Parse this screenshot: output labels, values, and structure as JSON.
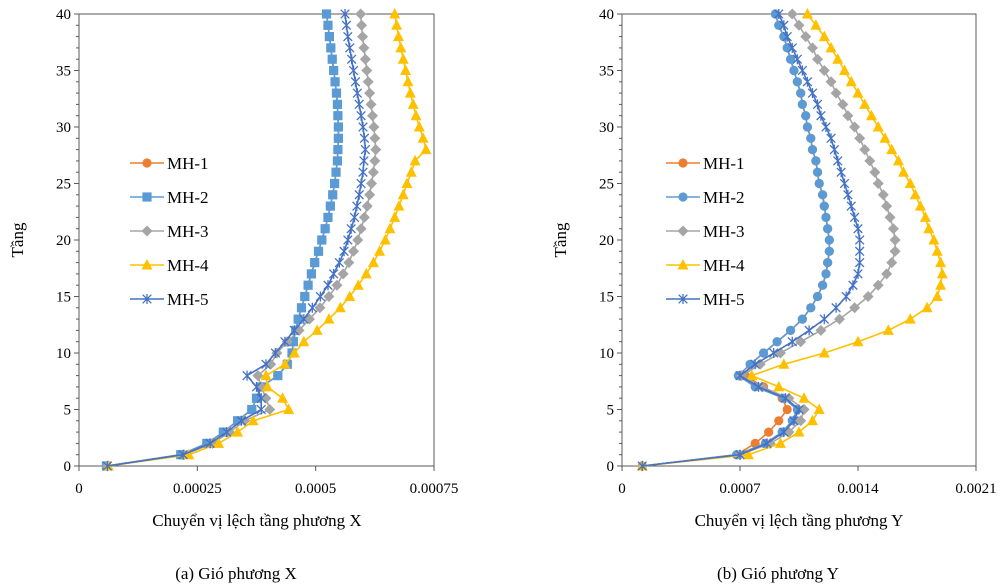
{
  "chart_data": [
    {
      "type": "line",
      "caption": "(a)  Gió phương X",
      "xlabel": "Chuyển vị lệch tầng phương X",
      "ylabel": "Tầng",
      "xlim": [
        0,
        0.00075
      ],
      "ylim": [
        0,
        40
      ],
      "xticks": [
        "0",
        "0.00025",
        "0.0005",
        "0.00075"
      ],
      "yticks": [
        "0",
        "5",
        "10",
        "15",
        "20",
        "25",
        "30",
        "35",
        "40"
      ],
      "legend_position": "left-middle",
      "grid": false,
      "series": [
        {
          "name": "MH-1",
          "color": "#ED7D31",
          "marker": "circle",
          "x": [
            5.8e-05,
            0.000215,
            0.00027,
            0.000305,
            0.000335,
            0.000365,
            0.000375,
            0.000385,
            0.00042,
            0.00044,
            0.00045,
            0.000453,
            0.000458,
            0.000463,
            0.00047,
            0.000477,
            0.000484,
            0.000491,
            0.000498,
            0.000506,
            0.000513,
            0.00052,
            0.000526,
            0.000531,
            0.000536,
            0.00054,
            0.000543,
            0.000546,
            0.000547,
            0.000548,
            0.000548,
            0.000547,
            0.000546,
            0.000544,
            0.000541,
            0.000538,
            0.000535,
            0.000532,
            0.000529,
            0.000526,
            0.000523
          ],
          "y": [
            0,
            1,
            2,
            3,
            4,
            5,
            6,
            7,
            8,
            9,
            10,
            11,
            12,
            13,
            14,
            15,
            16,
            17,
            18,
            19,
            20,
            21,
            22,
            23,
            24,
            25,
            26,
            27,
            28,
            29,
            30,
            31,
            32,
            33,
            34,
            35,
            36,
            37,
            38,
            39,
            40
          ]
        },
        {
          "name": "MH-2",
          "color": "#5B9BD5",
          "marker": "square",
          "x": [
            5.8e-05,
            0.000215,
            0.00027,
            0.000305,
            0.000335,
            0.000365,
            0.000375,
            0.000385,
            0.00042,
            0.00044,
            0.00045,
            0.000453,
            0.000458,
            0.000463,
            0.00047,
            0.000477,
            0.000484,
            0.000491,
            0.000498,
            0.000506,
            0.000513,
            0.00052,
            0.000526,
            0.000531,
            0.000536,
            0.00054,
            0.000543,
            0.000546,
            0.000547,
            0.000548,
            0.000548,
            0.000547,
            0.000546,
            0.000544,
            0.000541,
            0.000538,
            0.000535,
            0.000532,
            0.000529,
            0.000526,
            0.000523
          ],
          "y": [
            0,
            1,
            2,
            3,
            4,
            5,
            6,
            7,
            8,
            9,
            10,
            11,
            12,
            13,
            14,
            15,
            16,
            17,
            18,
            19,
            20,
            21,
            22,
            23,
            24,
            25,
            26,
            27,
            28,
            29,
            30,
            31,
            32,
            33,
            34,
            35,
            36,
            37,
            38,
            39,
            40
          ]
        },
        {
          "name": "MH-3",
          "color": "#A5A5A5",
          "marker": "diamond",
          "x": [
            6e-05,
            0.000222,
            0.000282,
            0.000318,
            0.00035,
            0.000403,
            0.000395,
            0.000385,
            0.000378,
            0.000405,
            0.000418,
            0.00044,
            0.000465,
            0.000487,
            0.000509,
            0.000528,
            0.000545,
            0.000558,
            0.00057,
            0.00058,
            0.000589,
            0.000596,
            0.000603,
            0.000609,
            0.000614,
            0.000618,
            0.000622,
            0.000625,
            0.000627,
            0.000625,
            0.000623,
            0.00062,
            0.000617,
            0.000614,
            0.000611,
            0.000608,
            0.000605,
            0.000602,
            0.000599,
            0.000597,
            0.000595
          ],
          "y": [
            0,
            1,
            2,
            3,
            4,
            5,
            6,
            7,
            8,
            9,
            10,
            11,
            12,
            13,
            14,
            15,
            16,
            17,
            18,
            19,
            20,
            21,
            22,
            23,
            24,
            25,
            26,
            27,
            28,
            29,
            30,
            31,
            32,
            33,
            34,
            35,
            36,
            37,
            38,
            39,
            40
          ]
        },
        {
          "name": "MH-4",
          "color": "#FFC000",
          "marker": "triangle",
          "x": [
            6.2e-05,
            0.000232,
            0.000295,
            0.000335,
            0.000368,
            0.000443,
            0.00043,
            0.000398,
            0.000395,
            0.000435,
            0.000455,
            0.000475,
            0.000503,
            0.000528,
            0.000552,
            0.000572,
            0.00059,
            0.000607,
            0.000622,
            0.000635,
            0.000647,
            0.000657,
            0.000667,
            0.000676,
            0.000685,
            0.000693,
            0.000702,
            0.00071,
            0.000733,
            0.000727,
            0.000719,
            0.000712,
            0.000706,
            0.0007,
            0.000695,
            0.00069,
            0.000685,
            0.00068,
            0.000675,
            0.000671,
            0.000667
          ],
          "y": [
            0,
            1,
            2,
            3,
            4,
            5,
            6,
            7,
            8,
            9,
            10,
            11,
            12,
            13,
            14,
            15,
            16,
            17,
            18,
            19,
            20,
            21,
            22,
            23,
            24,
            25,
            26,
            27,
            28,
            29,
            30,
            31,
            32,
            33,
            34,
            35,
            36,
            37,
            38,
            39,
            40
          ]
        },
        {
          "name": "MH-5",
          "color": "#4472C4",
          "marker": "star",
          "x": [
            6e-05,
            0.00022,
            0.000277,
            0.000312,
            0.000343,
            0.000385,
            0.000385,
            0.000375,
            0.000355,
            0.000395,
            0.000415,
            0.000435,
            0.000455,
            0.000475,
            0.000493,
            0.00051,
            0.000526,
            0.000538,
            0.00055,
            0.00056,
            0.000568,
            0.000575,
            0.000582,
            0.000587,
            0.000592,
            0.000596,
            0.0006,
            0.000602,
            0.000605,
            0.000603,
            0.0006,
            0.000596,
            0.000592,
            0.000588,
            0.000584,
            0.00058,
            0.000576,
            0.000572,
            0.000568,
            0.000565,
            0.000562
          ],
          "y": [
            0,
            1,
            2,
            3,
            4,
            5,
            6,
            7,
            8,
            9,
            10,
            11,
            12,
            13,
            14,
            15,
            16,
            17,
            18,
            19,
            20,
            21,
            22,
            23,
            24,
            25,
            26,
            27,
            28,
            29,
            30,
            31,
            32,
            33,
            34,
            35,
            36,
            37,
            38,
            39,
            40
          ]
        }
      ]
    },
    {
      "type": "line",
      "caption": "(b)  Gió phương Y",
      "xlabel": "Chuyển vị lệch tầng phương Y",
      "ylabel": "Tầng",
      "xlim": [
        0,
        0.0021
      ],
      "ylim": [
        0,
        40
      ],
      "xticks": [
        "0",
        "0.0007",
        "0.0014",
        "0.0021"
      ],
      "yticks": [
        "0",
        "5",
        "10",
        "15",
        "20",
        "25",
        "30",
        "35",
        "40"
      ],
      "legend_position": "left-middle",
      "grid": false,
      "series": [
        {
          "name": "MH-1",
          "color": "#ED7D31",
          "marker": "circle",
          "x": [
            0.00012,
            0.00068,
            0.00079,
            0.00087,
            0.00093,
            0.00098,
            0.00095,
            0.00084,
            0.00073,
            0.00076,
            0.00084,
            0.00092,
            0.001,
            0.00107,
            0.00112,
            0.00116,
            0.00119,
            0.00121,
            0.00122,
            0.00123,
            0.00123,
            0.00122,
            0.00121,
            0.0012,
            0.00119,
            0.00117,
            0.00116,
            0.00115,
            0.00113,
            0.00112,
            0.0011,
            0.00109,
            0.00107,
            0.00106,
            0.00104,
            0.00102,
            0.001,
            0.00098,
            0.00096,
            0.00093,
            0.00091
          ],
          "y": [
            0,
            1,
            2,
            3,
            4,
            5,
            6,
            7,
            8,
            9,
            10,
            11,
            12,
            13,
            14,
            15,
            16,
            17,
            18,
            19,
            20,
            21,
            22,
            23,
            24,
            25,
            26,
            27,
            28,
            29,
            30,
            31,
            32,
            33,
            34,
            35,
            36,
            37,
            38,
            39,
            40
          ]
        },
        {
          "name": "MH-2",
          "color": "#5B9BD5",
          "marker": "circle",
          "x": [
            0.00012,
            0.00068,
            0.00085,
            0.00095,
            0.00101,
            0.00104,
            0.00096,
            0.00079,
            0.00069,
            0.00076,
            0.00084,
            0.00092,
            0.001,
            0.00107,
            0.00112,
            0.00116,
            0.00119,
            0.00121,
            0.00122,
            0.00123,
            0.00123,
            0.00122,
            0.00121,
            0.0012,
            0.00119,
            0.00117,
            0.00116,
            0.00115,
            0.00113,
            0.00112,
            0.0011,
            0.00109,
            0.00107,
            0.00106,
            0.00104,
            0.00102,
            0.001,
            0.00098,
            0.00096,
            0.00093,
            0.00091
          ],
          "y": [
            0,
            1,
            2,
            3,
            4,
            5,
            6,
            7,
            8,
            9,
            10,
            11,
            12,
            13,
            14,
            15,
            16,
            17,
            18,
            19,
            20,
            21,
            22,
            23,
            24,
            25,
            26,
            27,
            28,
            29,
            30,
            31,
            32,
            33,
            34,
            35,
            36,
            37,
            38,
            39,
            40
          ]
        },
        {
          "name": "MH-3",
          "color": "#A5A5A5",
          "marker": "diamond",
          "x": [
            0.00012,
            0.0007,
            0.00088,
            0.00099,
            0.00106,
            0.00108,
            0.00099,
            0.00083,
            0.00071,
            0.00082,
            0.00094,
            0.00106,
            0.00118,
            0.00129,
            0.00138,
            0.00146,
            0.00152,
            0.00157,
            0.0016,
            0.00162,
            0.00162,
            0.00161,
            0.00159,
            0.00157,
            0.00155,
            0.00152,
            0.0015,
            0.00147,
            0.00144,
            0.00141,
            0.00138,
            0.00134,
            0.00131,
            0.00127,
            0.00124,
            0.0012,
            0.00116,
            0.00113,
            0.00109,
            0.00105,
            0.00101
          ],
          "y": [
            0,
            1,
            2,
            3,
            4,
            5,
            6,
            7,
            8,
            9,
            10,
            11,
            12,
            13,
            14,
            15,
            16,
            17,
            18,
            19,
            20,
            21,
            22,
            23,
            24,
            25,
            26,
            27,
            28,
            29,
            30,
            31,
            32,
            33,
            34,
            35,
            36,
            37,
            38,
            39,
            40
          ]
        },
        {
          "name": "MH-4",
          "color": "#FFC000",
          "marker": "triangle",
          "x": [
            0.00012,
            0.00075,
            0.00094,
            0.00105,
            0.00113,
            0.00117,
            0.00108,
            0.00093,
            0.00077,
            0.00096,
            0.0012,
            0.0014,
            0.00158,
            0.00171,
            0.00181,
            0.00187,
            0.00189,
            0.0019,
            0.00189,
            0.00187,
            0.00185,
            0.00182,
            0.0018,
            0.00177,
            0.00174,
            0.00171,
            0.00167,
            0.00164,
            0.0016,
            0.00156,
            0.00152,
            0.00148,
            0.00144,
            0.0014,
            0.00136,
            0.00132,
            0.00128,
            0.00124,
            0.0012,
            0.00115,
            0.0011
          ],
          "y": [
            0,
            1,
            2,
            3,
            4,
            5,
            6,
            7,
            8,
            9,
            10,
            11,
            12,
            13,
            14,
            15,
            16,
            17,
            18,
            19,
            20,
            21,
            22,
            23,
            24,
            25,
            26,
            27,
            28,
            29,
            30,
            31,
            32,
            33,
            34,
            35,
            36,
            37,
            38,
            39,
            40
          ]
        },
        {
          "name": "MH-5",
          "color": "#4472C4",
          "marker": "star",
          "x": [
            0.00012,
            0.0007,
            0.00086,
            0.00096,
            0.00102,
            0.00105,
            0.00097,
            0.00081,
            0.0007,
            0.00079,
            0.0009,
            0.00101,
            0.00111,
            0.0012,
            0.00127,
            0.00133,
            0.00137,
            0.0014,
            0.00141,
            0.00141,
            0.00141,
            0.0014,
            0.00138,
            0.00136,
            0.00134,
            0.00132,
            0.0013,
            0.00128,
            0.00126,
            0.00124,
            0.00121,
            0.00118,
            0.00116,
            0.00113,
            0.0011,
            0.00107,
            0.00104,
            0.00101,
            0.00098,
            0.00096,
            0.00093
          ],
          "y": [
            0,
            1,
            2,
            3,
            4,
            5,
            6,
            7,
            8,
            9,
            10,
            11,
            12,
            13,
            14,
            15,
            16,
            17,
            18,
            19,
            20,
            21,
            22,
            23,
            24,
            25,
            26,
            27,
            28,
            29,
            30,
            31,
            32,
            33,
            34,
            35,
            36,
            37,
            38,
            39,
            40
          ]
        }
      ]
    }
  ]
}
